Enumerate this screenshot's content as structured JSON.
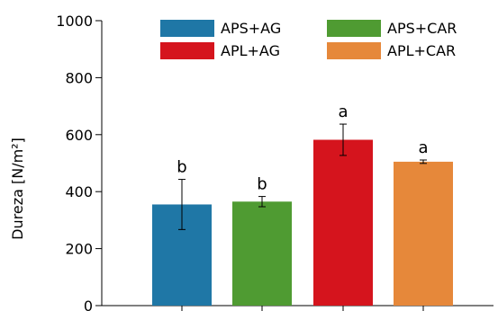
{
  "chart_data": {
    "type": "bar",
    "ylabel": "Dureza  [N/m²]",
    "ylim": [
      0,
      1000
    ],
    "yticks": [
      0,
      200,
      400,
      600,
      800,
      1000
    ],
    "grid": false,
    "legend_position": "top",
    "bars": [
      {
        "name": "APS+AG",
        "value": 355,
        "error": 88,
        "significance": "b",
        "color": "#1f77a6"
      },
      {
        "name": "APS+CAR",
        "value": 365,
        "error": 18,
        "significance": "b",
        "color": "#4f9b32"
      },
      {
        "name": "APL+AG",
        "value": 582,
        "error": 55,
        "significance": "a",
        "color": "#d5141d"
      },
      {
        "name": "APL+CAR",
        "value": 505,
        "error": 6,
        "significance": "a",
        "color": "#e6883a"
      }
    ]
  }
}
